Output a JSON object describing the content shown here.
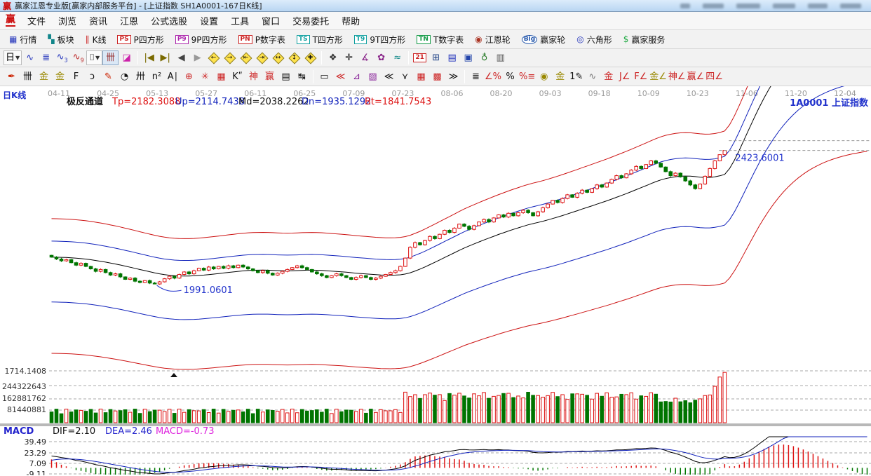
{
  "titlebar": {
    "logo_text": "赢",
    "app_title": "赢家江恩专业版[赢家内部服务平台] - [上证指数  SH1A0001-167日K线]"
  },
  "menubar": {
    "logo_text": "赢",
    "items": [
      {
        "name": "menu-file",
        "label": "文件"
      },
      {
        "name": "menu-browse",
        "label": "浏览"
      },
      {
        "name": "menu-news",
        "label": "资讯"
      },
      {
        "name": "menu-gann",
        "label": "江恩"
      },
      {
        "name": "menu-formula-pick",
        "label": "公式选股"
      },
      {
        "name": "menu-settings",
        "label": "设置"
      },
      {
        "name": "menu-tools",
        "label": "工具"
      },
      {
        "name": "menu-window",
        "label": "窗口"
      },
      {
        "name": "menu-trade",
        "label": "交易委托"
      },
      {
        "name": "menu-help",
        "label": "帮助"
      }
    ]
  },
  "toolbar_market": {
    "items": [
      {
        "name": "quotes-button",
        "label": "行情",
        "glyph": "▦",
        "color": "#2233bb"
      },
      {
        "name": "sectors-button",
        "label": "板块",
        "glyph": "▚",
        "color": "#11858a"
      },
      {
        "name": "kline-button",
        "label": "K线",
        "glyph": "∥",
        "color": "#cc2222"
      },
      {
        "name": "p-square-button",
        "label": "P四方形",
        "badge": "PS",
        "color": "#cc2222"
      },
      {
        "name": "p9-square-button",
        "label": "9P四方形",
        "badge": "P9",
        "color": "#aa22aa"
      },
      {
        "name": "p-number-button",
        "label": "P数字表",
        "badge": "PN",
        "color": "#cc2222"
      },
      {
        "name": "t-square-button",
        "label": "T四方形",
        "badge": "TS",
        "color": "#11a0a0"
      },
      {
        "name": "t9-square-button",
        "label": "9T四方形",
        "badge": "T9",
        "color": "#11a0a0"
      },
      {
        "name": "t-number-button",
        "label": "T数字表",
        "badge": "TN",
        "color": "#119944"
      },
      {
        "name": "gann-wheel-button",
        "label": "江恩轮",
        "glyph": "◉",
        "color": "#aa3322"
      },
      {
        "name": "winner-wheel-button",
        "label": "赢家轮",
        "badge": "Big",
        "round": true,
        "color": "#2255aa"
      },
      {
        "name": "hexagon-button",
        "label": "六角形",
        "glyph": "◎",
        "color": "#2233bb"
      },
      {
        "name": "winner-service-button",
        "label": "赢家服务",
        "glyph": "$",
        "color": "#22aa44"
      }
    ]
  },
  "toolbar_view": {
    "items": [
      {
        "name": "period-day-combo",
        "glyph": "日",
        "arrow": true,
        "color": "#000000",
        "combo": true
      },
      {
        "name": "trend-wave-icon",
        "glyph": "∿",
        "color": "#2233bb"
      },
      {
        "name": "f10-info-icon",
        "glyph": "≣",
        "color": "#2233bb"
      },
      {
        "name": "wave-3-icon",
        "glyph": "∿",
        "sub": "3",
        "color": "#2233bb"
      },
      {
        "name": "wave-9-icon",
        "glyph": "∿",
        "sub": "9",
        "color": "#bb2222"
      },
      {
        "name": "candle-style-combo",
        "glyph": "⌷",
        "arrow": true,
        "color": "#111111",
        "combo": true
      },
      {
        "name": "chip-distribution-button",
        "glyph": "卌",
        "color": "#993333",
        "active": true
      },
      {
        "name": "profile-histogram-icon",
        "glyph": "◪",
        "color": "#cc22aa"
      },
      {
        "divider": true
      },
      {
        "name": "jump-start-button",
        "glyph": "|◀",
        "color": "#7a6a00"
      },
      {
        "name": "jump-end-button",
        "glyph": "▶|",
        "color": "#7a6a00"
      },
      {
        "name": "step-back-button",
        "glyph": "◀",
        "color": "#444444"
      },
      {
        "name": "step-forward-button",
        "glyph": "▶",
        "color": "#999999"
      },
      {
        "name": "pan-left-button",
        "diamond": true,
        "glyph": "←"
      },
      {
        "name": "pan-right-button",
        "diamond": true,
        "glyph": "→"
      },
      {
        "name": "zoom-out-x-button",
        "diamond": true,
        "glyph": "⇤"
      },
      {
        "name": "zoom-in-x-button",
        "diamond": true,
        "glyph": "⇥"
      },
      {
        "name": "compress-x-button",
        "diamond": true,
        "glyph": "↔"
      },
      {
        "name": "compress-y-button",
        "diamond": true,
        "glyph": "↕"
      },
      {
        "name": "reset-zoom-button",
        "diamond": true,
        "glyph": "✚"
      },
      {
        "divider": true
      },
      {
        "name": "hand-pan-button",
        "glyph": "❖",
        "color": "#333333"
      },
      {
        "name": "crosshair-button",
        "glyph": "✛",
        "color": "#000000"
      },
      {
        "name": "measure-angle-button",
        "glyph": "∡",
        "color": "#882288"
      },
      {
        "name": "gann-shape-button",
        "glyph": "✿",
        "color": "#882288"
      },
      {
        "name": "wave-analysis-button",
        "glyph": "≈",
        "color": "#118888"
      },
      {
        "divider": true
      },
      {
        "name": "calendar-21-button",
        "badge": "21",
        "color": "#cc2222"
      },
      {
        "name": "calculator-button",
        "glyph": "⊞",
        "color": "#224488"
      },
      {
        "name": "notes-button",
        "glyph": "▤",
        "color": "#2233bb"
      },
      {
        "name": "save-image-button",
        "glyph": "▣",
        "color": "#2244aa"
      },
      {
        "name": "web-button",
        "glyph": "♁",
        "color": "#227722"
      },
      {
        "name": "print-button",
        "glyph": "▥",
        "color": "#555555"
      }
    ]
  },
  "toolbar_draw": {
    "items": [
      {
        "name": "draw-brush",
        "glyph": "✒",
        "color": "#cc2200"
      },
      {
        "name": "gann-scale",
        "glyph": "卌",
        "color": "#111111"
      },
      {
        "name": "gold-scale-1",
        "glyph": "金",
        "color": "#998800"
      },
      {
        "name": "gold-scale-2",
        "glyph": "金",
        "color": "#998800"
      },
      {
        "name": "f-scale",
        "glyph": "F",
        "color": "#111111"
      },
      {
        "name": "spiral-tool",
        "glyph": "ↄ",
        "color": "#111111"
      },
      {
        "name": "pen-ruler",
        "glyph": "✎",
        "color": "#cc2200"
      },
      {
        "name": "cycle-clock",
        "glyph": "◔",
        "color": "#111111"
      },
      {
        "name": "ruler-ticks",
        "glyph": "卅",
        "color": "#111111"
      },
      {
        "name": "n-square",
        "glyph": "n²",
        "color": "#111111"
      },
      {
        "name": "a-lines",
        "glyph": "A∣",
        "color": "#111111"
      },
      {
        "name": "target-circle",
        "glyph": "⊕",
        "color": "#cc2222"
      },
      {
        "name": "star-grid",
        "glyph": "✳",
        "color": "#cc2222"
      },
      {
        "name": "square-grid",
        "glyph": "▦",
        "color": "#cc2222"
      },
      {
        "name": "k-quote",
        "glyph": "Kʺ",
        "color": "#111111"
      },
      {
        "name": "shen-tool",
        "glyph": "神",
        "color": "#cc2222"
      },
      {
        "name": "ying-tool",
        "glyph": "赢",
        "color": "#cc2222"
      },
      {
        "name": "ruler-123",
        "glyph": "▤",
        "color": "#111111"
      },
      {
        "name": "width-measure",
        "glyph": "↹",
        "color": "#111111"
      },
      {
        "divider": true
      },
      {
        "name": "box-tool",
        "glyph": "▭",
        "color": "#111111"
      },
      {
        "name": "fan-red",
        "glyph": "≪",
        "color": "#cc2222"
      },
      {
        "name": "fan-box-purple",
        "glyph": "⊿",
        "color": "#882299"
      },
      {
        "name": "shade-box-purple",
        "glyph": "▨",
        "color": "#882299"
      },
      {
        "name": "fan-black",
        "glyph": "≪",
        "color": "#111111"
      },
      {
        "name": "v-dotted",
        "glyph": "⋎",
        "color": "#111111"
      },
      {
        "name": "grid-red-1",
        "glyph": "▦",
        "color": "#cc2222"
      },
      {
        "name": "grid-red-2",
        "glyph": "▩",
        "color": "#cc2222"
      },
      {
        "name": "slant-lines",
        "glyph": "≫",
        "color": "#111111"
      },
      {
        "divider": true
      },
      {
        "name": "ladder-chart",
        "glyph": "≣",
        "color": "#111111"
      },
      {
        "name": "angle-7pct",
        "glyph": "∠%",
        "color": "#cc2222"
      },
      {
        "name": "percent-tool",
        "glyph": "%",
        "color": "#111111"
      },
      {
        "name": "percent-lines",
        "glyph": "%≡",
        "color": "#cc2222"
      },
      {
        "name": "gold-circle",
        "glyph": "◉",
        "color": "#998800"
      },
      {
        "name": "gold-lines",
        "glyph": "金",
        "color": "#998800"
      },
      {
        "name": "one-pen",
        "glyph": "1✎",
        "color": "#111111"
      },
      {
        "name": "gua-wave",
        "glyph": "∿",
        "color": "#777777"
      },
      {
        "name": "gold-box",
        "glyph": "金",
        "color": "#cc2222"
      },
      {
        "name": "angle-j",
        "glyph": "J∠",
        "color": "#cc2222"
      },
      {
        "name": "angle-f",
        "glyph": "F∠",
        "color": "#cc2222"
      },
      {
        "name": "angle-gold",
        "glyph": "金∠",
        "color": "#998800"
      },
      {
        "name": "angle-shen",
        "glyph": "神∠",
        "color": "#cc2222"
      },
      {
        "name": "angle-ying",
        "glyph": "赢∠",
        "color": "#cc2222"
      },
      {
        "name": "angle-si",
        "glyph": "四∠",
        "color": "#cc2222"
      }
    ]
  },
  "chart_data": {
    "type": "candlestick",
    "period_label": "日K线",
    "corner_label": "1A0001  上证指数",
    "indicator_header": {
      "name": "极反通道",
      "tp": "Tp=2182.3088",
      "up": "Up=2114.7438",
      "md": "Md=2038.2262",
      "dn": "Dn=1935.1292",
      "bt": "Bt=1841.7543"
    },
    "x_tick_labels": [
      "04-11",
      "04-25",
      "05-13",
      "05-27",
      "06-11",
      "06-25",
      "07-09",
      "07-23",
      "08-06",
      "08-20",
      "09-03",
      "09-18",
      "10-09",
      "10-23",
      "11-06",
      "11-20",
      "12-04"
    ],
    "total_slots": 167,
    "price_axis": {
      "min": 1714.1408,
      "max": 2550
    },
    "main_bottom_label": "1714.1408",
    "closes": [
      2078,
      2072,
      2066,
      2070,
      2060,
      2052,
      2058,
      2048,
      2040,
      2032,
      2038,
      2028,
      2020,
      2024,
      2014,
      2006,
      2010,
      2000,
      1996,
      2002,
      1994,
      1991.06,
      1998,
      2008,
      2016,
      2010,
      2022,
      2030,
      2024,
      2034,
      2042,
      2036,
      2046,
      2040,
      2048,
      2042,
      2050,
      2044,
      2052,
      2046,
      2040,
      2034,
      2028,
      2034,
      2026,
      2020,
      2026,
      2032,
      2038,
      2044,
      2050,
      2044,
      2038,
      2030,
      2024,
      2018,
      2012,
      2018,
      2024,
      2018,
      2012,
      2006,
      2012,
      2018,
      2012,
      2006,
      2010,
      2016,
      2022,
      2028,
      2034,
      2048,
      2075,
      2110,
      2125,
      2118,
      2132,
      2145,
      2138,
      2152,
      2165,
      2158,
      2172,
      2185,
      2178,
      2168,
      2180,
      2192,
      2200,
      2192,
      2205,
      2215,
      2208,
      2220,
      2212,
      2222,
      2230,
      2222,
      2212,
      2225,
      2238,
      2250,
      2262,
      2255,
      2268,
      2280,
      2272,
      2285,
      2295,
      2288,
      2300,
      2312,
      2305,
      2318,
      2330,
      2342,
      2335,
      2348,
      2360,
      2372,
      2365,
      2378,
      2390,
      2382,
      2370,
      2355,
      2342,
      2350,
      2338,
      2325,
      2312,
      2300,
      2315,
      2340,
      2365,
      2390,
      2410,
      2423.6
    ],
    "channel_multipliers": {
      "tp": 1.06,
      "up": 1.025,
      "dn": 0.93,
      "bt": 0.85
    },
    "channel_colors": {
      "tp": "#cc1111",
      "up": "#1122bb",
      "md": "#000000",
      "dn": "#1122bb",
      "bt": "#cc1111"
    },
    "annotations": [
      {
        "name": "high-price-label",
        "text": "2423.6001",
        "price": 2423.6001,
        "bar": 137
      },
      {
        "name": "low-price-label",
        "text": "1991.0601",
        "price": 1991.0601,
        "bar": 21
      }
    ],
    "volume_ticks": [
      "244322643",
      "162881762",
      "81440881"
    ],
    "macd": {
      "label": "MACD",
      "dif_label": "DIF=2.10",
      "dea_label": "DEA=2.46",
      "macd_label": "MACD=-0.73",
      "y_ticks": [
        "39.49",
        "23.29",
        "7.09",
        "-9.11"
      ],
      "colors": {
        "dif": "#000000",
        "dea": "#1122bb",
        "hist_pos": "#dd1111",
        "hist_neg": "#007700",
        "label": "#dd22dd"
      }
    },
    "colors": {
      "up": "#dd1111",
      "down": "#007400",
      "grid": "#aaaaaa",
      "dates": "#999999",
      "blue_text": "#2233cc"
    }
  }
}
